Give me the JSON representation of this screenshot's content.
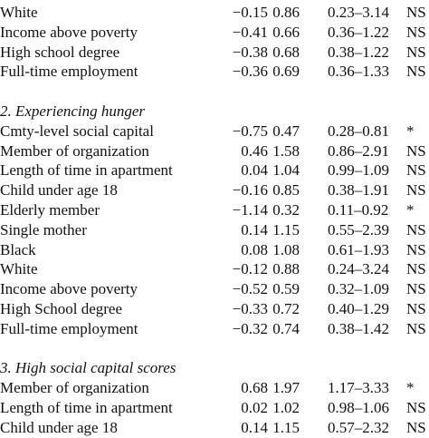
{
  "table": {
    "sections": [
      {
        "rows": [
          [
            "White",
            "−0.15",
            "0.86",
            "0.23–3.14",
            "NS"
          ],
          [
            "Income above poverty",
            "−0.41",
            "0.66",
            "0.36–1.22",
            "NS"
          ],
          [
            "High school degree",
            "−0.38",
            "0.68",
            "0.38–1.22",
            "NS"
          ],
          [
            "Full-time employment",
            "−0.36",
            "0.69",
            "0.36–1.33",
            "NS"
          ]
        ]
      },
      {
        "title": "2. Experiencing hunger",
        "rows": [
          [
            "Cmty-level social capital",
            "−0.75",
            "0.47",
            "0.28–0.81",
            "*"
          ],
          [
            "Member of organization",
            "0.46",
            "1.58",
            "0.86–2.91",
            "NS"
          ],
          [
            "Length of time in apartment",
            "0.04",
            "1.04",
            "0.99–1.09",
            "NS"
          ],
          [
            "Child under age 18",
            "−0.16",
            "0.85",
            "0.38–1.91",
            "NS"
          ],
          [
            "Elderly member",
            "−1.14",
            "0.32",
            "0.11–0.92",
            "*"
          ],
          [
            "Single mother",
            "0.14",
            "1.15",
            "0.55–2.39",
            "NS"
          ],
          [
            "Black",
            "0.08",
            "1.08",
            "0.61–1.93",
            "NS"
          ],
          [
            "White",
            "−0.12",
            "0.88",
            "0.24–3.24",
            "NS"
          ],
          [
            "Income above poverty",
            "−0.52",
            "0.59",
            "0.32–1.09",
            "NS"
          ],
          [
            "High School degree",
            "−0.33",
            "0.72",
            "0.40–1.29",
            "NS"
          ],
          [
            "Full-time employment",
            "−0.32",
            "0.74",
            "0.38–1.42",
            "NS"
          ]
        ]
      },
      {
        "title": "3. High social capital scores",
        "rows": [
          [
            "Member of organization",
            "0.68",
            "1.97",
            "1.17–3.33",
            "*"
          ],
          [
            "Length of time in apartment",
            "0.02",
            "1.02",
            "0.98–1.06",
            "NS"
          ],
          [
            "Child under age 18",
            "0.14",
            "1.15",
            "0.57–2.32",
            "NS"
          ]
        ]
      }
    ]
  }
}
